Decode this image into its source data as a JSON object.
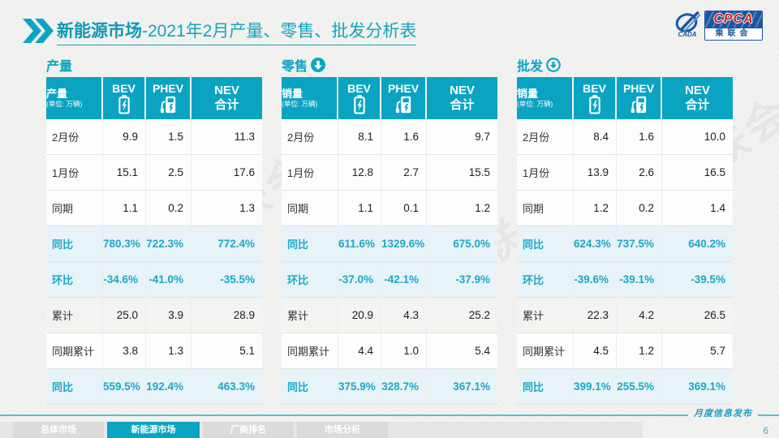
{
  "header": {
    "title_bold": "新能源市场",
    "title_rest": "-2021年2月产量、零售、批发分析表",
    "logo": {
      "cada": "CADA",
      "cpca": "CPCA",
      "org": "乘联会"
    }
  },
  "watermark": "CPCA乘联会",
  "tables": [
    {
      "section": "产量",
      "corner_label": "产量",
      "unit": "(单位: 万辆)",
      "columns": {
        "bev": "BEV",
        "phev": "PHEV",
        "nev1": "NEV",
        "nev2": "合计"
      },
      "rows": [
        {
          "label": "2月份",
          "bev": "9.9",
          "phev": "1.5",
          "nev": "11.3",
          "style": "plain"
        },
        {
          "label": "1月份",
          "bev": "15.1",
          "phev": "2.5",
          "nev": "17.6",
          "style": "plain"
        },
        {
          "label": "同期",
          "bev": "1.1",
          "phev": "0.2",
          "nev": "1.3",
          "style": "plain"
        },
        {
          "label": "同比",
          "bev": "780.3%",
          "phev": "722.3%",
          "nev": "772.4%",
          "style": "highlight"
        },
        {
          "label": "环比",
          "bev": "-34.6%",
          "phev": "-41.0%",
          "nev": "-35.5%",
          "style": "highlight"
        },
        {
          "label": "累计",
          "bev": "25.0",
          "phev": "3.9",
          "nev": "28.9",
          "style": "gray"
        },
        {
          "label": "同期累计",
          "bev": "3.8",
          "phev": "1.3",
          "nev": "5.1",
          "style": "plain"
        },
        {
          "label": "同比",
          "bev": "559.5%",
          "phev": "192.4%",
          "nev": "463.3%",
          "style": "highlight"
        }
      ]
    },
    {
      "section": "零售",
      "corner_label": "销量",
      "unit": "(单位: 万辆)",
      "columns": {
        "bev": "BEV",
        "phev": "PHEV",
        "nev1": "NEV",
        "nev2": "合计"
      },
      "rows": [
        {
          "label": "2月份",
          "bev": "8.1",
          "phev": "1.6",
          "nev": "9.7",
          "style": "plain"
        },
        {
          "label": "1月份",
          "bev": "12.8",
          "phev": "2.7",
          "nev": "15.5",
          "style": "plain"
        },
        {
          "label": "同期",
          "bev": "1.1",
          "phev": "0.1",
          "nev": "1.2",
          "style": "plain"
        },
        {
          "label": "同比",
          "bev": "611.6%",
          "phev": "1329.6%",
          "nev": "675.0%",
          "style": "highlight"
        },
        {
          "label": "环比",
          "bev": "-37.0%",
          "phev": "-42.1%",
          "nev": "-37.9%",
          "style": "highlight"
        },
        {
          "label": "累计",
          "bev": "20.9",
          "phev": "4.3",
          "nev": "25.2",
          "style": "gray"
        },
        {
          "label": "同期累计",
          "bev": "4.4",
          "phev": "1.0",
          "nev": "5.4",
          "style": "plain"
        },
        {
          "label": "同比",
          "bev": "375.9%",
          "phev": "328.7%",
          "nev": "367.1%",
          "style": "highlight"
        }
      ]
    },
    {
      "section": "批发",
      "corner_label": "销量",
      "unit": "(单位: 万辆)",
      "columns": {
        "bev": "BEV",
        "phev": "PHEV",
        "nev1": "NEV",
        "nev2": "合计"
      },
      "rows": [
        {
          "label": "2月份",
          "bev": "8.4",
          "phev": "1.6",
          "nev": "10.0",
          "style": "plain"
        },
        {
          "label": "1月份",
          "bev": "13.9",
          "phev": "2.6",
          "nev": "16.5",
          "style": "plain"
        },
        {
          "label": "同期",
          "bev": "1.2",
          "phev": "0.2",
          "nev": "1.4",
          "style": "plain"
        },
        {
          "label": "同比",
          "bev": "624.3%",
          "phev": "737.5%",
          "nev": "640.2%",
          "style": "highlight"
        },
        {
          "label": "环比",
          "bev": "-39.6%",
          "phev": "-39.1%",
          "nev": "-39.5%",
          "style": "highlight"
        },
        {
          "label": "累计",
          "bev": "22.3",
          "phev": "4.2",
          "nev": "26.5",
          "style": "gray"
        },
        {
          "label": "同期累计",
          "bev": "4.5",
          "phev": "1.2",
          "nev": "5.7",
          "style": "plain"
        },
        {
          "label": "同比",
          "bev": "399.1%",
          "phev": "255.5%",
          "nev": "369.1%",
          "style": "highlight"
        }
      ]
    }
  ],
  "footer": {
    "tabs": [
      {
        "label": "总体市场",
        "active": false
      },
      {
        "label": "新能源市场",
        "active": true
      },
      {
        "label": "厂商排名",
        "active": false
      },
      {
        "label": "市场分析",
        "active": false
      }
    ],
    "note": "月度信息发布",
    "page": "6"
  },
  "colors": {
    "teal": "#0aa4c2",
    "highlight_row": "#e7f3f8",
    "logo_blue": "#1a57a0",
    "logo_red": "#c8201e"
  }
}
